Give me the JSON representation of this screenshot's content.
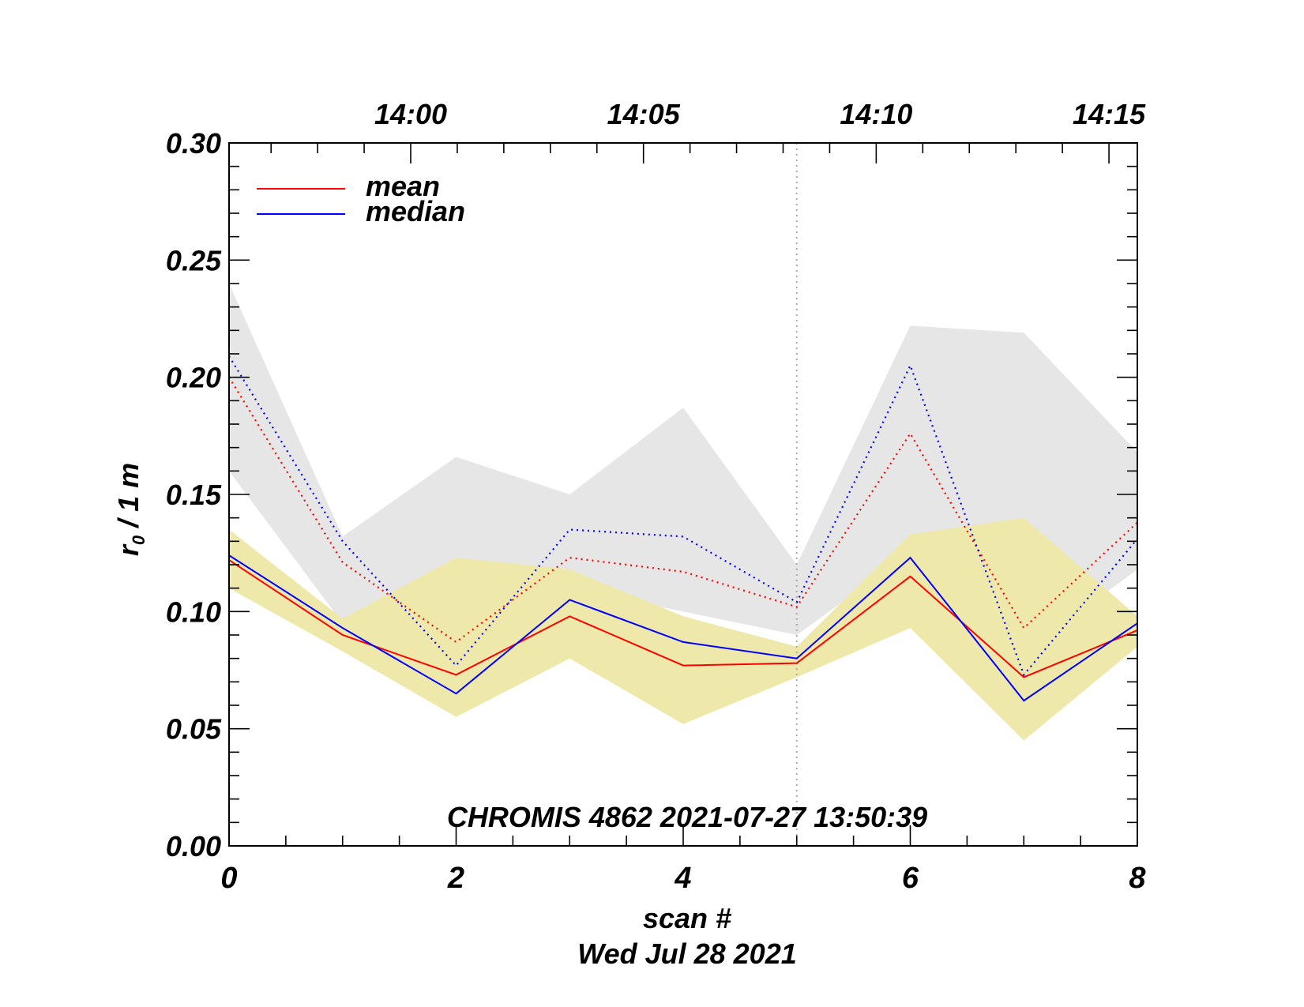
{
  "chart_data": {
    "type": "line",
    "title": "",
    "annotation": "CHROMIS 4862 2021-07-27 13:50:39",
    "xlabel": "scan #",
    "xlabel2": "Wed Jul 28 2021",
    "ylabel": {
      "r": "r",
      "sub": "0",
      "rest": " / 1 m"
    },
    "xlim": [
      0,
      8
    ],
    "ylim": [
      0,
      0.3
    ],
    "x_ticks": [
      "0",
      "2",
      "4",
      "6",
      "8"
    ],
    "x_tick_values": [
      0,
      2,
      4,
      6,
      8
    ],
    "y_ticks": [
      "0.00",
      "0.05",
      "0.10",
      "0.15",
      "0.20",
      "0.25",
      "0.30"
    ],
    "y_tick_values": [
      0,
      0.05,
      0.1,
      0.15,
      0.2,
      0.25,
      0.3
    ],
    "top_axis_labels": [
      "14:00",
      "14:05",
      "14:10",
      "14:15"
    ],
    "top_axis_positions": [
      1.6,
      3.65,
      5.7,
      7.75
    ],
    "vertical_marker_x": 5,
    "x": [
      0,
      1,
      2,
      3,
      4,
      5,
      6,
      7,
      8
    ],
    "series": [
      {
        "name": "mean",
        "color": "#ff0000",
        "style": "solid",
        "values": [
          0.122,
          0.09,
          0.073,
          0.098,
          0.077,
          0.078,
          0.115,
          0.072,
          0.092
        ]
      },
      {
        "name": "median",
        "color": "#0000ff",
        "style": "solid",
        "values": [
          0.124,
          0.093,
          0.065,
          0.105,
          0.087,
          0.08,
          0.123,
          0.062,
          0.095
        ]
      },
      {
        "name": "mean-dotted",
        "color": "#ff0000",
        "style": "dotted",
        "values": [
          0.2,
          0.121,
          0.087,
          0.123,
          0.117,
          0.102,
          0.176,
          0.093,
          0.138
        ]
      },
      {
        "name": "median-dotted",
        "color": "#0000ff",
        "style": "dotted",
        "values": [
          0.209,
          0.13,
          0.077,
          0.135,
          0.132,
          0.104,
          0.205,
          0.073,
          0.131
        ]
      }
    ],
    "bands": [
      {
        "name": "gray-band",
        "color": "#e6e6e6",
        "upper": [
          0.24,
          0.132,
          0.166,
          0.15,
          0.187,
          0.12,
          0.222,
          0.219,
          0.168
        ],
        "lower": [
          0.16,
          0.095,
          0.072,
          0.11,
          0.1,
          0.09,
          0.125,
          0.082,
          0.118
        ]
      },
      {
        "name": "yellow-band",
        "color": "#eee8aa",
        "upper": [
          0.135,
          0.097,
          0.123,
          0.118,
          0.098,
          0.085,
          0.133,
          0.14,
          0.098
        ]
      },
      {
        "name": "yellow-band-lower",
        "color": "#eee8aa",
        "lower": [
          0.11,
          0.083,
          0.055,
          0.08,
          0.052,
          0.072,
          0.093,
          0.045,
          0.085
        ]
      }
    ],
    "legend": [
      {
        "label": "mean",
        "color": "#ff0000"
      },
      {
        "label": "median",
        "color": "#0000ff"
      }
    ]
  }
}
